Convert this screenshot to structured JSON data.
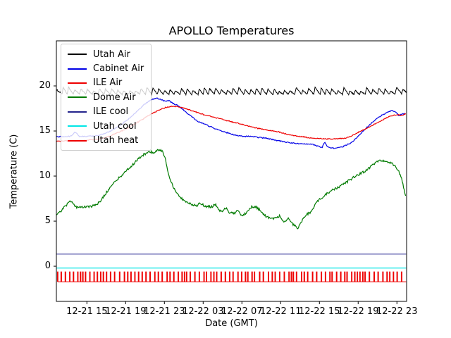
{
  "window": {
    "kind": "matplotlib-figure"
  },
  "chart_data": {
    "type": "line",
    "title": "APOLLO Temperatures",
    "xlabel": "Date (GMT)",
    "ylabel": "Temperature (C)",
    "grid": false,
    "legend_position": "upper left",
    "xlim_hours": [
      11.85,
      48.0
    ],
    "ylim": [
      -3.9,
      25.0
    ],
    "x_ticks": {
      "t": [
        15,
        19,
        23,
        27,
        31,
        35,
        39,
        43,
        47
      ],
      "labels": [
        "12-21 15",
        "12-21 19",
        "12-21 23",
        "12-22 03",
        "12-22 07",
        "12-22 11",
        "12-22 15",
        "12-22 19",
        "12-22 23"
      ]
    },
    "y_ticks": [
      0,
      5,
      10,
      15,
      20
    ],
    "series": [
      {
        "name": "Utah Air",
        "color": "#000000",
        "type": "sawtooth",
        "width": 1,
        "sawtooth": {
          "period_h": 0.58,
          "amp": 0.55
        },
        "noise": 0.05,
        "points": [
          [
            11.85,
            19.5
          ],
          [
            12.0,
            18.9
          ],
          [
            12.3,
            19.1
          ],
          [
            14,
            19.1
          ],
          [
            18,
            19.05
          ],
          [
            22,
            19.1
          ],
          [
            26,
            19.05
          ],
          [
            30,
            19.1
          ],
          [
            34,
            19.05
          ],
          [
            38,
            19.1
          ],
          [
            42,
            19.05
          ],
          [
            46,
            19.1
          ],
          [
            47.95,
            19.15
          ]
        ]
      },
      {
        "name": "Cabinet Air",
        "color": "#0000e6",
        "type": "line",
        "width": 1.2,
        "noise": 0.055,
        "points": [
          [
            11.85,
            14.35
          ],
          [
            13.3,
            14.4
          ],
          [
            13.8,
            14.9
          ],
          [
            14.2,
            14.4
          ],
          [
            15.1,
            14.4
          ],
          [
            16.2,
            14.5
          ],
          [
            17.3,
            14.9
          ],
          [
            18.4,
            15.6
          ],
          [
            19.5,
            16.5
          ],
          [
            20.4,
            17.4
          ],
          [
            21.1,
            18.1
          ],
          [
            21.7,
            18.5
          ],
          [
            22.2,
            18.65
          ],
          [
            22.6,
            18.5
          ],
          [
            23.1,
            18.3
          ],
          [
            23.5,
            18.4
          ],
          [
            23.8,
            18.1
          ],
          [
            24.4,
            17.8
          ],
          [
            25.0,
            17.3
          ],
          [
            25.7,
            16.7
          ],
          [
            26.4,
            16.1
          ],
          [
            27.5,
            15.6
          ],
          [
            28.6,
            15.1
          ],
          [
            29.5,
            14.8
          ],
          [
            30.4,
            14.5
          ],
          [
            31.1,
            14.4
          ],
          [
            31.9,
            14.4
          ],
          [
            32.6,
            14.3
          ],
          [
            33.5,
            14.2
          ],
          [
            34.4,
            14.0
          ],
          [
            35.3,
            13.8
          ],
          [
            36.0,
            13.7
          ],
          [
            36.7,
            13.6
          ],
          [
            37.5,
            13.6
          ],
          [
            38.3,
            13.5
          ],
          [
            38.9,
            13.3
          ],
          [
            39.3,
            13.2
          ],
          [
            39.55,
            13.8
          ],
          [
            39.8,
            13.3
          ],
          [
            40.2,
            13.1
          ],
          [
            40.8,
            13.1
          ],
          [
            41.5,
            13.3
          ],
          [
            42.3,
            13.7
          ],
          [
            43.0,
            14.4
          ],
          [
            43.7,
            15.2
          ],
          [
            44.4,
            15.9
          ],
          [
            45.2,
            16.6
          ],
          [
            45.9,
            17.0
          ],
          [
            46.5,
            17.3
          ],
          [
            46.9,
            17.1
          ],
          [
            47.2,
            16.7
          ],
          [
            47.5,
            16.9
          ],
          [
            47.9,
            16.9
          ]
        ]
      },
      {
        "name": "ILE Air",
        "color": "#ee0000",
        "type": "line",
        "width": 1.2,
        "noise": 0.05,
        "points": [
          [
            11.85,
            13.85
          ],
          [
            12.9,
            13.9
          ],
          [
            14.0,
            13.9
          ],
          [
            15.1,
            14.0
          ],
          [
            16.2,
            14.1
          ],
          [
            17.3,
            14.4
          ],
          [
            18.4,
            14.9
          ],
          [
            19.5,
            15.5
          ],
          [
            20.6,
            16.2
          ],
          [
            21.5,
            16.8
          ],
          [
            22.4,
            17.3
          ],
          [
            23.1,
            17.6
          ],
          [
            23.9,
            17.75
          ],
          [
            24.4,
            17.7
          ],
          [
            25.1,
            17.5
          ],
          [
            26.0,
            17.2
          ],
          [
            27.1,
            16.8
          ],
          [
            28.2,
            16.5
          ],
          [
            29.3,
            16.2
          ],
          [
            30.4,
            15.9
          ],
          [
            31.5,
            15.6
          ],
          [
            32.6,
            15.3
          ],
          [
            33.7,
            15.1
          ],
          [
            34.8,
            14.9
          ],
          [
            35.8,
            14.6
          ],
          [
            36.9,
            14.4
          ],
          [
            38.0,
            14.25
          ],
          [
            39.1,
            14.15
          ],
          [
            40.2,
            14.1
          ],
          [
            40.9,
            14.15
          ],
          [
            41.7,
            14.2
          ],
          [
            42.4,
            14.5
          ],
          [
            43.1,
            14.9
          ],
          [
            43.9,
            15.3
          ],
          [
            44.6,
            15.7
          ],
          [
            45.3,
            16.1
          ],
          [
            46.0,
            16.5
          ],
          [
            46.6,
            16.75
          ],
          [
            47.2,
            16.8
          ],
          [
            47.5,
            16.7
          ],
          [
            47.9,
            16.9
          ]
        ]
      },
      {
        "name": "Dome Air",
        "color": "#007a00",
        "type": "line",
        "width": 1.2,
        "noise": 0.13,
        "points": [
          [
            11.85,
            5.8
          ],
          [
            12.4,
            6.2
          ],
          [
            12.9,
            6.8
          ],
          [
            13.3,
            7.2
          ],
          [
            13.6,
            6.9
          ],
          [
            14.0,
            6.5
          ],
          [
            14.6,
            6.6
          ],
          [
            15.3,
            6.6
          ],
          [
            15.9,
            6.8
          ],
          [
            16.4,
            7.2
          ],
          [
            16.9,
            8.0
          ],
          [
            17.5,
            8.9
          ],
          [
            18.1,
            9.6
          ],
          [
            18.5,
            10.0
          ],
          [
            19.1,
            10.6
          ],
          [
            19.7,
            11.2
          ],
          [
            20.3,
            11.9
          ],
          [
            20.9,
            12.4
          ],
          [
            21.5,
            12.7
          ],
          [
            21.9,
            12.6
          ],
          [
            22.3,
            12.9
          ],
          [
            22.8,
            12.8
          ],
          [
            23.1,
            11.9
          ],
          [
            23.3,
            10.8
          ],
          [
            23.6,
            9.6
          ],
          [
            23.9,
            8.8
          ],
          [
            24.3,
            8.0
          ],
          [
            24.7,
            7.6
          ],
          [
            25.1,
            7.2
          ],
          [
            25.7,
            6.9
          ],
          [
            26.3,
            6.7
          ],
          [
            26.7,
            7.0
          ],
          [
            27.3,
            6.6
          ],
          [
            27.9,
            6.6
          ],
          [
            28.3,
            6.9
          ],
          [
            28.6,
            6.2
          ],
          [
            29.0,
            6.1
          ],
          [
            29.4,
            6.5
          ],
          [
            29.7,
            5.9
          ],
          [
            30.3,
            5.9
          ],
          [
            30.6,
            6.3
          ],
          [
            31.0,
            5.5
          ],
          [
            31.5,
            6.0
          ],
          [
            32.0,
            6.6
          ],
          [
            32.4,
            6.6
          ],
          [
            32.9,
            6.2
          ],
          [
            33.5,
            5.5
          ],
          [
            34.2,
            5.2
          ],
          [
            34.9,
            5.6
          ],
          [
            35.3,
            4.9
          ],
          [
            35.8,
            5.3
          ],
          [
            36.3,
            4.6
          ],
          [
            36.8,
            4.2
          ],
          [
            37.1,
            4.9
          ],
          [
            37.6,
            5.7
          ],
          [
            38.1,
            6.0
          ],
          [
            38.6,
            6.9
          ],
          [
            39.0,
            7.4
          ],
          [
            39.7,
            8.0
          ],
          [
            40.4,
            8.5
          ],
          [
            41.2,
            8.9
          ],
          [
            41.9,
            9.4
          ],
          [
            42.6,
            9.9
          ],
          [
            43.3,
            10.3
          ],
          [
            43.9,
            10.7
          ],
          [
            44.6,
            11.3
          ],
          [
            45.2,
            11.8
          ],
          [
            45.7,
            11.7
          ],
          [
            46.2,
            11.5
          ],
          [
            46.8,
            11.2
          ],
          [
            47.2,
            10.5
          ],
          [
            47.5,
            9.7
          ],
          [
            47.7,
            8.6
          ],
          [
            47.9,
            7.9
          ]
        ]
      },
      {
        "name": "ILE cool",
        "color": "#9898cb",
        "legend_color": "#24248c",
        "type": "line",
        "width": 2,
        "noise": 0,
        "points": [
          [
            11.85,
            1.35
          ],
          [
            47.95,
            1.35
          ]
        ]
      },
      {
        "name": "Utah cool",
        "color": "#00e6e6",
        "type": "line",
        "width": 1.3,
        "noise": 0,
        "points": [
          [
            11.85,
            -0.2
          ],
          [
            47.95,
            -0.2
          ]
        ]
      },
      {
        "name": "Utah heat",
        "color": "#ee0000",
        "type": "pulse",
        "width": 1,
        "pulse": {
          "base": -1.72,
          "peak": -0.63,
          "t_start": 11.95,
          "t_end": 47.95,
          "avg_spacing_h": 0.37,
          "spacing_jitter": 0.45,
          "width_h": 0.07
        }
      }
    ]
  }
}
